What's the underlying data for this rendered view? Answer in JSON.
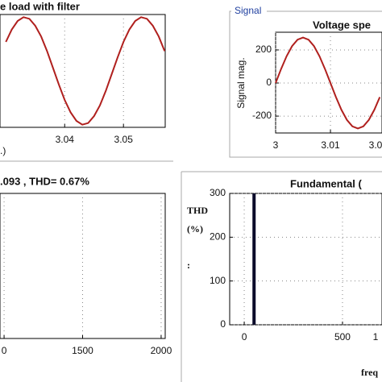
{
  "chart_data": [
    {
      "type": "line",
      "title": "e load with filter",
      "xlabel": ".)",
      "x": [
        3.03,
        3.031,
        3.032,
        3.033,
        3.034,
        3.035,
        3.036,
        3.037,
        3.038,
        3.039,
        3.04,
        3.041,
        3.042,
        3.043,
        3.044,
        3.045,
        3.046,
        3.047,
        3.048,
        3.049,
        3.05,
        3.051,
        3.052,
        3.053,
        3.054,
        3.055,
        3.056,
        3.057
      ],
      "series": [
        {
          "color": "#b0201e",
          "values": [
            0.54,
            0.77,
            0.93,
            1.0,
            0.97,
            0.84,
            0.64,
            0.37,
            0.06,
            -0.25,
            -0.54,
            -0.77,
            -0.93,
            -1.0,
            -0.97,
            -0.84,
            -0.64,
            -0.37,
            -0.06,
            0.25,
            0.54,
            0.77,
            0.93,
            1.0,
            0.97,
            0.84,
            0.64,
            0.37
          ]
        }
      ],
      "xlim": [
        3.029,
        3.0571
      ],
      "ylim": [
        -1.05,
        1.05
      ],
      "xticks": [
        3.04,
        3.05
      ],
      "grid": true
    },
    {
      "type": "line",
      "panel_label": "Signal",
      "title": "Voltage spe",
      "ylabel": "Signal mag.",
      "x": [
        3.0,
        3.001,
        3.002,
        3.003,
        3.004,
        3.005,
        3.006,
        3.007,
        3.008,
        3.009,
        3.01,
        3.011,
        3.012,
        3.013,
        3.014,
        3.015,
        3.016,
        3.017,
        3.018,
        3.019
      ],
      "series": [
        {
          "color": "#b0201e",
          "values": [
            0,
            85,
            162,
            223,
            262,
            275,
            262,
            223,
            162,
            85,
            0,
            -85,
            -162,
            -223,
            -262,
            -275,
            -262,
            -223,
            -162,
            -85
          ]
        }
      ],
      "xlim": [
        3,
        3.0194
      ],
      "ylim": [
        -302,
        307
      ],
      "xticks": [
        3,
        3.01,
        {
          "value": 3.02,
          "label": "3.0"
        }
      ],
      "yticks": [
        -200,
        0,
        200
      ],
      "grid": true
    },
    {
      "type": "line",
      "title": ".093 , THD= 0.67%",
      "xlim": [
        974,
        2026
      ],
      "xticks": [
        {
          "value": 1000,
          "label": "0"
        },
        1500,
        2000
      ],
      "grid": true
    },
    {
      "type": "bar",
      "title": "Fundamental (",
      "xlabel": "freq",
      "annotations": [
        "THD",
        "(%)",
        ":"
      ],
      "x": [
        50
      ],
      "values": [
        300
      ],
      "color": "#0a0a2a",
      "xlim": [
        -74,
        701
      ],
      "ylim": [
        0,
        300
      ],
      "xticks": [
        0,
        500,
        {
          "value": 1000,
          "label": "1"
        }
      ],
      "yticks": [
        0,
        100,
        200,
        300
      ],
      "grid": true
    }
  ]
}
